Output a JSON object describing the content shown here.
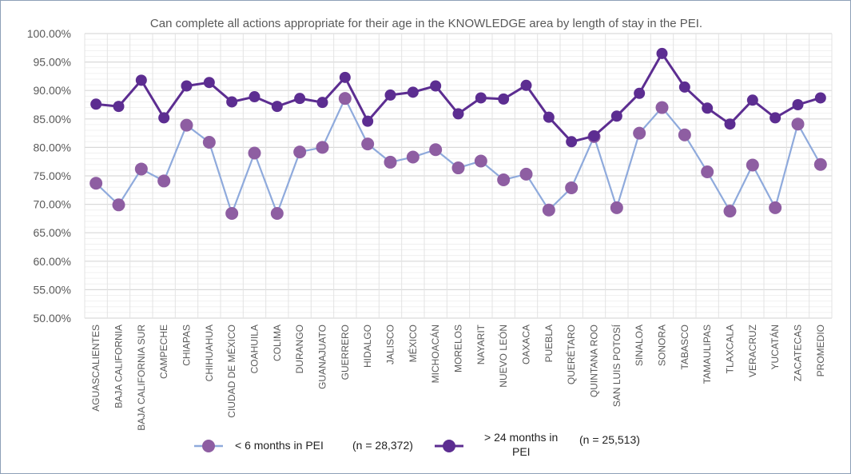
{
  "chart_data": {
    "type": "line",
    "title": "Can complete all actions appropriate for their age in the KNOWLEDGE area by length of stay in the PEI.",
    "xlabel": "",
    "ylabel": "",
    "ylim": [
      50,
      100
    ],
    "y_ticks": [
      "50.00%",
      "55.00%",
      "60.00%",
      "65.00%",
      "70.00%",
      "75.00%",
      "80.00%",
      "85.00%",
      "90.00%",
      "95.00%",
      "100.00%"
    ],
    "grid": true,
    "legend_position": "bottom",
    "categories": [
      "AGUASCALIENTES",
      "BAJA CALIFORNIA",
      "BAJA CALIFORNIA SUR",
      "CAMPECHE",
      "CHIAPAS",
      "CHIHUAHUA",
      "CIUDAD DE MÉXICO",
      "COAHUILA",
      "COLIMA",
      "DURANGO",
      "GUANAJUATO",
      "GUERRERO",
      "HIDALGO",
      "JALISCO",
      "MÉXICO",
      "MICHOACÁN",
      "MORELOS",
      "NAYARIT",
      "NUEVO LEÓN",
      "OAXACA",
      "PUEBLA",
      "QUERÉTARO",
      "QUINTANA ROO",
      "SAN LUIS POTOSÍ",
      "SINALOA",
      "SONORA",
      "TABASCO",
      "TAMAULIPAS",
      "TLAXCALA",
      "VERACRUZ",
      "YUCATÁN",
      "ZACATECAS",
      "PROMEDIO"
    ],
    "series": [
      {
        "name": "< 6 months in PEI",
        "n_label": "(n = 28,372)",
        "line_color": "#8faadc",
        "marker_color": "#8e5ea2",
        "values": [
          73.7,
          69.9,
          76.2,
          74.1,
          83.9,
          80.9,
          68.4,
          79.0,
          68.4,
          79.2,
          80.0,
          88.6,
          80.6,
          77.4,
          78.3,
          79.6,
          76.4,
          77.6,
          74.3,
          75.3,
          69.0,
          72.9,
          81.9,
          69.4,
          82.5,
          87.0,
          82.2,
          75.7,
          68.8,
          76.9,
          69.4,
          84.1,
          77.0
        ]
      },
      {
        "name": "> 24 months in PEI",
        "n_label": "(n = 25,513)",
        "line_color": "#5c2d91",
        "marker_color": "#5c2d91",
        "values": [
          87.6,
          87.2,
          91.8,
          85.2,
          90.8,
          91.4,
          88.0,
          88.9,
          87.2,
          88.6,
          87.9,
          92.3,
          84.6,
          89.2,
          89.7,
          90.8,
          85.9,
          88.7,
          88.5,
          90.9,
          85.3,
          81.0,
          82.0,
          85.5,
          89.5,
          96.5,
          90.6,
          86.9,
          84.1,
          88.3,
          85.2,
          87.5,
          88.7
        ]
      }
    ]
  },
  "legend": {
    "series1_label": "< 6 months in PEI",
    "series1_n": "(n = 28,372)",
    "series2_label_line1": "> 24 months in",
    "series2_label_line2": "PEI",
    "series2_n": "(n = 25,513)"
  }
}
